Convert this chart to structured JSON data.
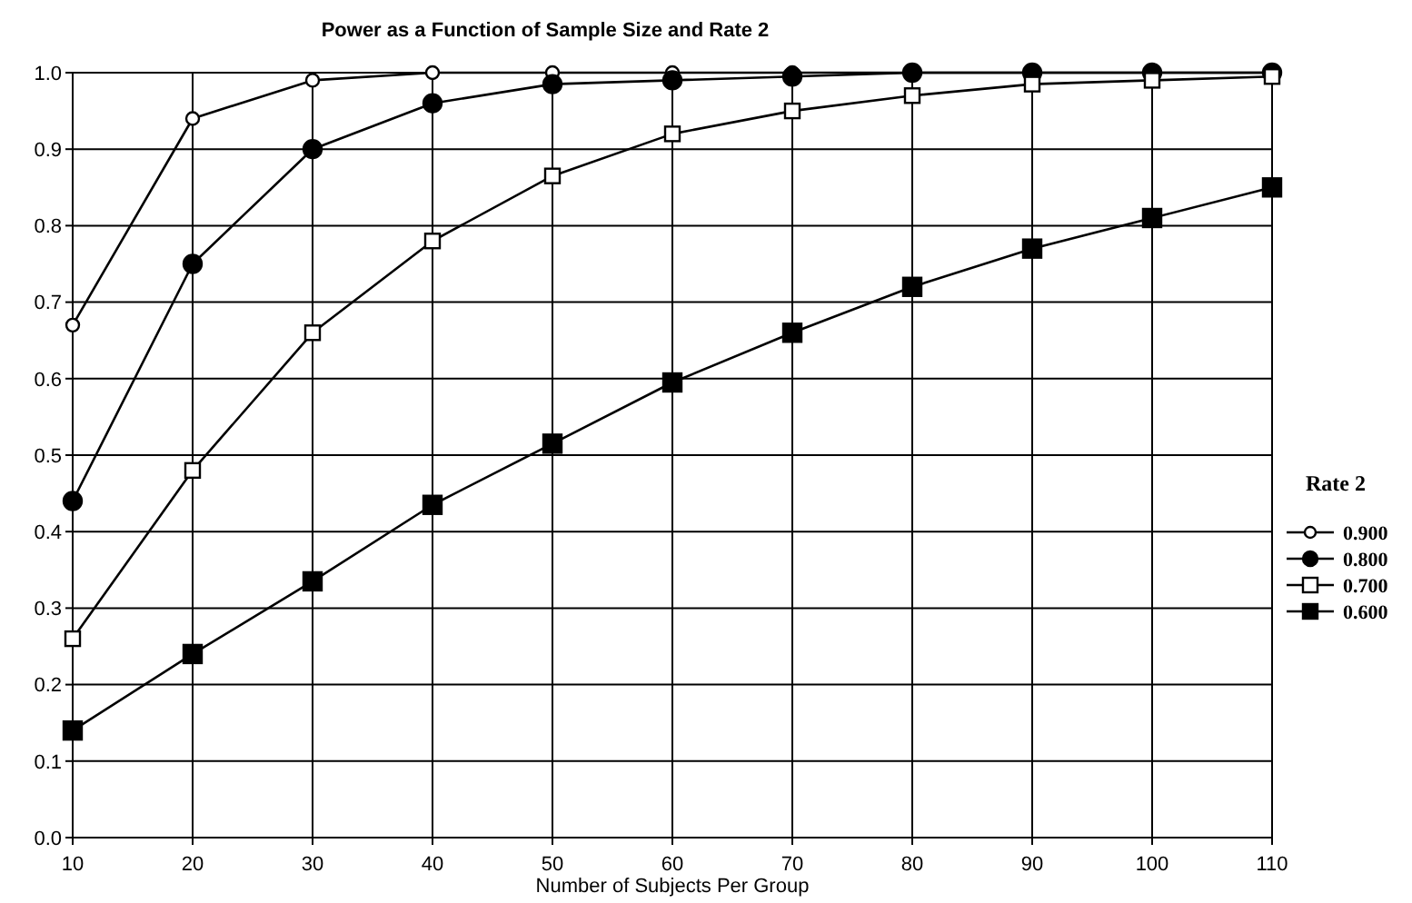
{
  "chart_data": {
    "type": "line",
    "title": "Power as a Function of Sample Size and Rate 2",
    "xlabel": "Number of Subjects Per Group",
    "legend_title": "Rate 2",
    "x": [
      10,
      20,
      30,
      40,
      50,
      60,
      70,
      80,
      90,
      100,
      110
    ],
    "series": [
      {
        "name": "0.900",
        "color": "#000000",
        "marker": "circle-open",
        "values": [
          0.67,
          0.94,
          0.99,
          1.0,
          1.0,
          1.0,
          1.0,
          1.0,
          1.0,
          1.0,
          1.0
        ]
      },
      {
        "name": "0.800",
        "color": "#000000",
        "marker": "circle",
        "values": [
          0.44,
          0.75,
          0.9,
          0.96,
          0.985,
          0.99,
          0.995,
          1.0,
          1.0,
          1.0,
          1.0
        ]
      },
      {
        "name": "0.700",
        "color": "#000000",
        "marker": "square-open",
        "values": [
          0.26,
          0.48,
          0.66,
          0.78,
          0.865,
          0.92,
          0.95,
          0.97,
          0.985,
          0.99,
          0.995
        ]
      },
      {
        "name": "0.600",
        "color": "#000000",
        "marker": "square",
        "values": [
          0.14,
          0.24,
          0.335,
          0.435,
          0.515,
          0.595,
          0.66,
          0.72,
          0.77,
          0.81,
          0.85
        ]
      }
    ],
    "xlim": [
      10,
      110
    ],
    "xticks": [
      10,
      20,
      30,
      40,
      50,
      60,
      70,
      80,
      90,
      100,
      110
    ],
    "ylim": [
      0,
      1
    ],
    "yticks": [
      {
        "value": 0,
        "label": "0.0"
      },
      0.1,
      0.2,
      0.3,
      0.4,
      0.5,
      0.6,
      0.7,
      0.8,
      0.9,
      {
        "value": 1,
        "label": "1.0"
      }
    ],
    "grid": true,
    "legend": "right",
    "line_style": "solid"
  }
}
